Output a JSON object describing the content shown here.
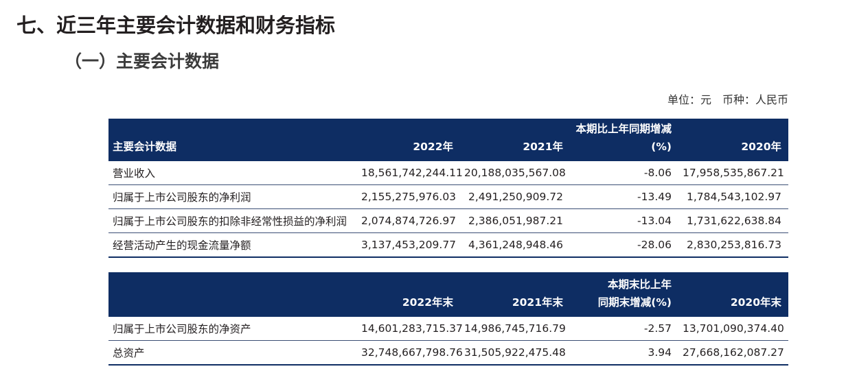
{
  "header": {
    "title": "七、近三年主要会计数据和财务指标",
    "subtitle": "（一）主要会计数据",
    "unit": "单位：元　币种：人民币"
  },
  "tables": [
    {
      "header": [
        "主要会计数据",
        "2022年",
        "2021年",
        [
          "本期比上年同期增减",
          "(%)"
        ],
        "2020年"
      ],
      "rows": [
        [
          "营业收入",
          "18,561,742,244.11",
          "20,188,035,567.08",
          "-8.06",
          "17,958,535,867.21"
        ],
        [
          "归属于上市公司股东的净利润",
          "2,155,275,976.03",
          "2,491,250,909.72",
          "-13.49",
          "1,784,543,102.97"
        ],
        [
          "归属于上市公司股东的扣除非经常性损益的净利润",
          "2,074,874,726.97",
          "2,386,051,987.21",
          "-13.04",
          "1,731,622,638.84"
        ],
        [
          "经营活动产生的现金流量净额",
          "3,137,453,209.77",
          "4,361,248,948.46",
          "-28.06",
          "2,830,253,816.73"
        ]
      ]
    },
    {
      "header": [
        "2022年末",
        "2021年末",
        [
          "本期末比上年",
          "同期末增减(%)"
        ],
        "2020年末"
      ],
      "rows": [
        [
          "归属于上市公司股东的净资产",
          "14,601,283,715.37",
          "14,986,745,716.79",
          "-2.57",
          "13,701,090,374.40"
        ],
        [
          "总资产",
          "32,748,667,798.76",
          "31,505,922,475.48",
          "3.94",
          "27,668,162,087.27"
        ]
      ]
    }
  ]
}
